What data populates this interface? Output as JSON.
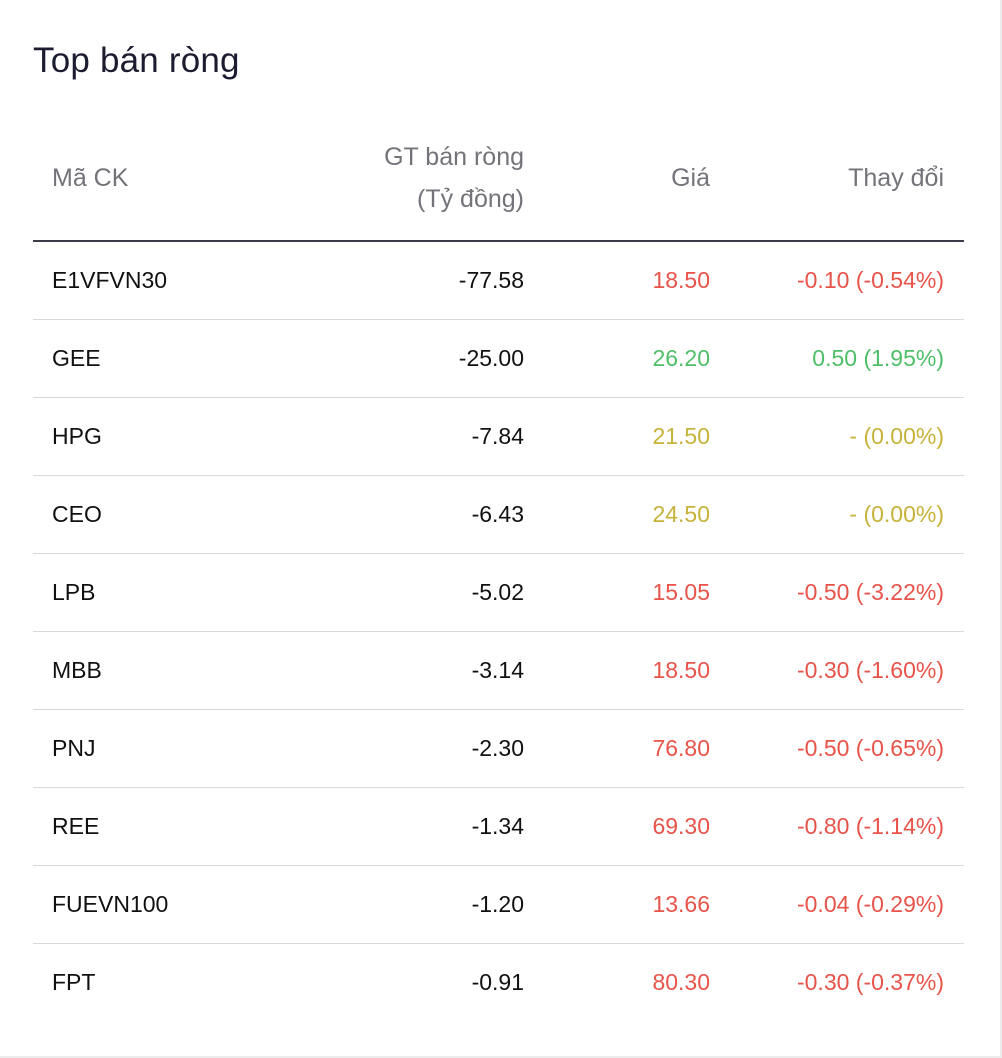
{
  "title": "Top bán ròng",
  "colors": {
    "down": "#e8534a",
    "up": "#4fbf67",
    "reference": "#c7b23a"
  },
  "columns": {
    "code": "Mã CK",
    "net_value_line1": "GT bán ròng",
    "net_value_line2": "(Tỷ đồng)",
    "price": "Giá",
    "change": "Thay đổi"
  },
  "rows": [
    {
      "code": "E1VFVN30",
      "net_value": "-77.58",
      "price": "18.50",
      "change": "-0.10 (-0.54%)",
      "trend": "down"
    },
    {
      "code": "GEE",
      "net_value": "-25.00",
      "price": "26.20",
      "change": "0.50 (1.95%)",
      "trend": "up"
    },
    {
      "code": "HPG",
      "net_value": "-7.84",
      "price": "21.50",
      "change": "- (0.00%)",
      "trend": "ref"
    },
    {
      "code": "CEO",
      "net_value": "-6.43",
      "price": "24.50",
      "change": "- (0.00%)",
      "trend": "ref"
    },
    {
      "code": "LPB",
      "net_value": "-5.02",
      "price": "15.05",
      "change": "-0.50 (-3.22%)",
      "trend": "down"
    },
    {
      "code": "MBB",
      "net_value": "-3.14",
      "price": "18.50",
      "change": "-0.30 (-1.60%)",
      "trend": "down"
    },
    {
      "code": "PNJ",
      "net_value": "-2.30",
      "price": "76.80",
      "change": "-0.50 (-0.65%)",
      "trend": "down"
    },
    {
      "code": "REE",
      "net_value": "-1.34",
      "price": "69.30",
      "change": "-0.80 (-1.14%)",
      "trend": "down"
    },
    {
      "code": "FUEVN100",
      "net_value": "-1.20",
      "price": "13.66",
      "change": "-0.04 (-0.29%)",
      "trend": "down"
    },
    {
      "code": "FPT",
      "net_value": "-0.91",
      "price": "80.30",
      "change": "-0.30 (-0.37%)",
      "trend": "down"
    }
  ]
}
